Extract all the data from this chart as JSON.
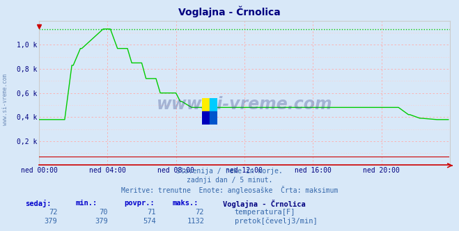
{
  "title": "Voglajna - Črnolica",
  "title_color": "#000080",
  "bg_color": "#d8e8f8",
  "plot_bg_color": "#d8e8f8",
  "x_tick_labels": [
    "ned 00:00",
    "ned 04:00",
    "ned 08:00",
    "ned 12:00",
    "ned 16:00",
    "ned 20:00"
  ],
  "x_tick_positions": [
    0,
    48,
    96,
    144,
    192,
    240
  ],
  "y_tick_labels": [
    "0,2 k",
    "0,4 k",
    "0,6 k",
    "0,8 k",
    "1,0 k"
  ],
  "y_tick_values": [
    200,
    400,
    600,
    800,
    1000
  ],
  "ylim": [
    0,
    1200
  ],
  "xlim": [
    0,
    288
  ],
  "flow_color": "#00cc00",
  "temp_color": "#cc0000",
  "max_line_color": "#00cc00",
  "max_value": 1132,
  "watermark": "www.si-vreme.com",
  "subtitle1": "Slovenija / reke in morje.",
  "subtitle2": "zadnji dan / 5 minut.",
  "subtitle3": "Meritve: trenutne  Enote: angleosaške  Črta: maksimum",
  "legend_title": "Voglajna - Črnolica",
  "sedaj_label": "sedaj:",
  "min_label": "min.:",
  "povpr_label": "povpr.:",
  "maks_label": "maks.:",
  "temp_sedaj": "72",
  "temp_min": "70",
  "temp_povpr": "71",
  "temp_maks": "72",
  "flow_sedaj": "379",
  "flow_min": "379",
  "flow_povpr": "574",
  "flow_maks": "1132",
  "temp_label": "temperatura[F]",
  "flow_label": "pretok[čevelj3/min]"
}
